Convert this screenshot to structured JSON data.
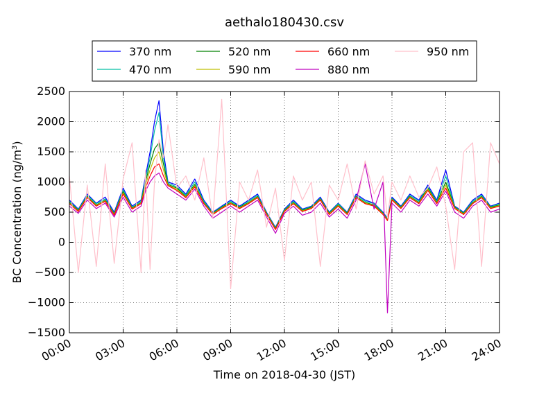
{
  "chart_data": {
    "type": "line",
    "title": "aethalo180430.csv",
    "xlabel": "Time on 2018-04-30 (JST)",
    "ylabel": "BC Concentration (ng/m",
    "ylabel_sup": "3",
    "ylabel_end": ")",
    "xlim": [
      "00:00",
      "24:00"
    ],
    "ylim": [
      -1500,
      2500
    ],
    "x_ticks": [
      "00:00",
      "03:00",
      "06:00",
      "09:00",
      "12:00",
      "15:00",
      "18:00",
      "21:00",
      "24:00"
    ],
    "y_ticks": [
      -1500,
      -1000,
      -500,
      0,
      500,
      1000,
      1500,
      2000,
      2500
    ],
    "grid": true,
    "legend_position": "top-center",
    "x_hours": [
      0.0,
      0.5,
      1.0,
      1.5,
      2.0,
      2.5,
      3.0,
      3.5,
      4.0,
      4.25,
      4.5,
      4.75,
      5.0,
      5.25,
      5.5,
      6.0,
      6.5,
      7.0,
      7.5,
      8.0,
      8.5,
      9.0,
      9.5,
      10.0,
      10.5,
      11.0,
      11.5,
      12.0,
      12.5,
      13.0,
      13.5,
      14.0,
      14.5,
      15.0,
      15.5,
      16.0,
      16.5,
      17.0,
      17.5,
      17.75,
      18.0,
      18.5,
      19.0,
      19.5,
      20.0,
      20.5,
      21.0,
      21.5,
      22.0,
      22.5,
      23.0,
      23.5,
      24.0
    ],
    "series": [
      {
        "name": "370 nm",
        "color": "#0000ff",
        "values": [
          700,
          550,
          800,
          650,
          750,
          500,
          900,
          600,
          700,
          1100,
          1500,
          2000,
          2350,
          1500,
          1000,
          950,
          800,
          1050,
          700,
          500,
          600,
          700,
          600,
          700,
          800,
          500,
          250,
          550,
          700,
          550,
          600,
          750,
          500,
          650,
          500,
          800,
          700,
          650,
          500,
          400,
          750,
          600,
          800,
          700,
          950,
          700,
          1200,
          600,
          500,
          700,
          800,
          600,
          650
        ]
      },
      {
        "name": "470 nm",
        "color": "#00bfa5",
        "values": [
          680,
          540,
          780,
          640,
          720,
          480,
          870,
          580,
          680,
          1050,
          1400,
          1850,
          2150,
          1400,
          980,
          920,
          780,
          1000,
          680,
          490,
          590,
          680,
          590,
          680,
          780,
          490,
          240,
          540,
          680,
          540,
          590,
          730,
          490,
          640,
          490,
          780,
          680,
          640,
          490,
          390,
          730,
          590,
          780,
          680,
          920,
          680,
          1100,
          590,
          490,
          680,
          780,
          590,
          640
        ]
      },
      {
        "name": "520 nm",
        "color": "#008000",
        "values": [
          660,
          530,
          760,
          620,
          700,
          470,
          840,
          570,
          660,
          1000,
          1300,
          1550,
          1650,
          1300,
          960,
          900,
          760,
          960,
          660,
          480,
          580,
          660,
          580,
          660,
          760,
          480,
          230,
          530,
          660,
          530,
          580,
          720,
          480,
          620,
          480,
          760,
          660,
          620,
          480,
          380,
          720,
          580,
          760,
          660,
          900,
          660,
          1000,
          580,
          480,
          660,
          760,
          580,
          620
        ]
      },
      {
        "name": "590 nm",
        "color": "#bfbf00",
        "values": [
          650,
          520,
          750,
          610,
          690,
          460,
          820,
          560,
          650,
          950,
          1200,
          1400,
          1500,
          1200,
          950,
          880,
          750,
          940,
          650,
          470,
          570,
          650,
          570,
          650,
          750,
          470,
          220,
          520,
          650,
          520,
          570,
          710,
          470,
          610,
          470,
          750,
          650,
          610,
          470,
          370,
          710,
          570,
          750,
          650,
          880,
          650,
          950,
          570,
          470,
          650,
          750,
          570,
          610
        ]
      },
      {
        "name": "660 nm",
        "color": "#ff0000",
        "values": [
          640,
          510,
          740,
          600,
          680,
          450,
          800,
          550,
          640,
          900,
          1100,
          1250,
          1300,
          1100,
          940,
          860,
          740,
          920,
          640,
          460,
          560,
          640,
          560,
          640,
          740,
          460,
          210,
          510,
          640,
          510,
          560,
          700,
          460,
          600,
          460,
          740,
          640,
          600,
          460,
          360,
          700,
          560,
          740,
          640,
          860,
          640,
          900,
          560,
          460,
          640,
          740,
          560,
          600
        ]
      },
      {
        "name": "880 nm",
        "color": "#bf00bf",
        "values": [
          600,
          480,
          700,
          560,
          650,
          420,
          750,
          500,
          600,
          850,
          1000,
          1100,
          1150,
          1000,
          900,
          800,
          700,
          880,
          600,
          400,
          500,
          600,
          500,
          600,
          700,
          420,
          150,
          480,
          600,
          450,
          500,
          650,
          420,
          550,
          400,
          700,
          1300,
          550,
          1000,
          -1170,
          650,
          500,
          700,
          600,
          800,
          600,
          850,
          500,
          400,
          600,
          700,
          500,
          550
        ]
      },
      {
        "name": "950 nm",
        "color": "#ffc0cb",
        "values": [
          1100,
          -500,
          950,
          -400,
          1300,
          -350,
          1050,
          1650,
          -500,
          1200,
          -450,
          1000,
          1700,
          1400,
          1950,
          900,
          1100,
          700,
          1400,
          400,
          2370,
          -770,
          1000,
          700,
          1200,
          250,
          900,
          -300,
          1100,
          700,
          1000,
          -400,
          950,
          700,
          1300,
          550,
          1350,
          800,
          1100,
          400,
          1000,
          700,
          1100,
          750,
          900,
          1250,
          600,
          -450,
          1500,
          1650,
          -400,
          1650,
          1300
        ]
      }
    ]
  }
}
